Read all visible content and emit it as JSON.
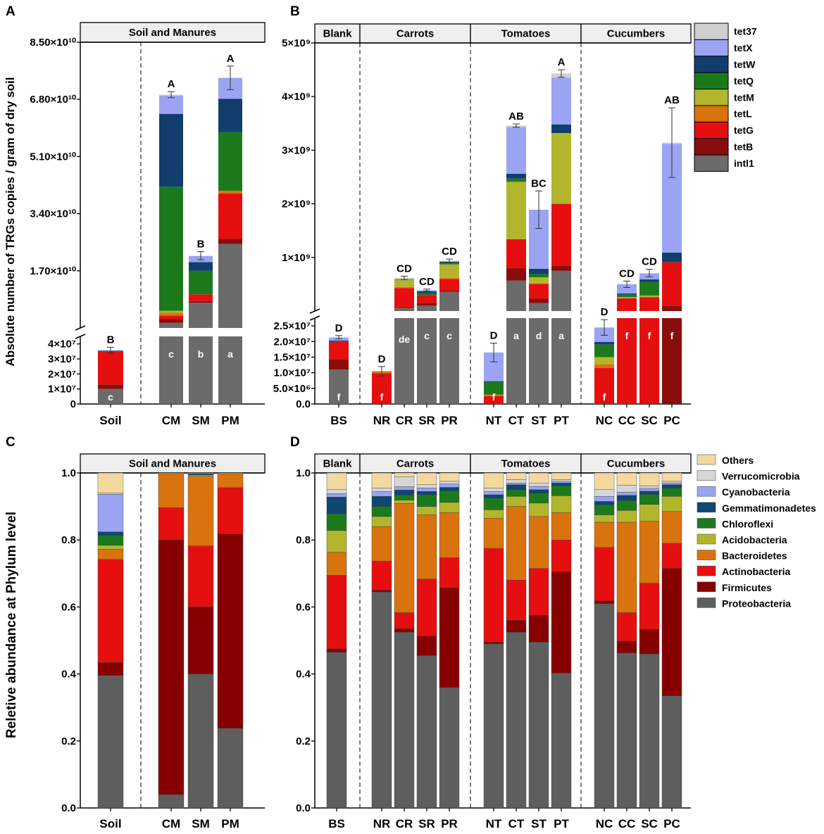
{
  "colors": {
    "tet37": "#cfcfcf",
    "tetX": "#9aa4f2",
    "tetW": "#123e6e",
    "tetQ": "#1c7a1c",
    "tetM": "#b3b52c",
    "tetL": "#d9730d",
    "tetG": "#e50f0f",
    "tetB": "#8a0d0d",
    "intI1": "#6b6b6b",
    "Others": "#f3d9a0",
    "Verrucomicrobia": "#d6d6d6",
    "Cyanobacteria": "#9aa4f2",
    "Gemmatimonadetes": "#0f4672",
    "Chloroflexi": "#1c7a1c",
    "Acidobacteria": "#b3b52c",
    "Bacteroidetes": "#d9730d",
    "Actinobacteria": "#e50f0f",
    "Firmicutes": "#870000",
    "Proteobacteria": "#5e5e5e"
  },
  "panel_labels": {
    "a": "A",
    "b": "B",
    "c": "C",
    "d": "D"
  },
  "shared_ylabels": {
    "top": "Absolute number of TRGs copies / gram of dry soil",
    "bottom": "Reletive abundance at Phylum level"
  },
  "chart_data": [
    {
      "id": "A",
      "type": "bar",
      "stacked": true,
      "broken_axis": true,
      "group_titles": [
        "Soil and Manures"
      ],
      "categories": [
        "Soil",
        "CM",
        "SM",
        "PM"
      ],
      "lower_axis": {
        "range": [
          0,
          45000000
        ],
        "ticks": [
          0,
          10000000,
          20000000,
          30000000,
          40000000
        ],
        "tick_labels": [
          "0",
          "1×10⁷",
          "2×10⁷",
          "3×10⁷",
          "4×10⁷"
        ]
      },
      "upper_axis": {
        "range": [
          0,
          85000000000
        ],
        "ticks": [
          17000000000,
          34000000000,
          51000000000,
          68000000000,
          85000000000
        ],
        "tick_labels": [
          "1.70×10¹⁰",
          "3.40×10¹⁰",
          "5.10×10¹⁰",
          "6.80×10¹⁰",
          "8.50×10¹⁰"
        ]
      },
      "stack_order": [
        "intI1",
        "tetB",
        "tetG",
        "tetL",
        "tetM",
        "tetQ",
        "tetW",
        "tetX",
        "tet37"
      ],
      "bars": [
        {
          "cat": "Soil",
          "axis": "lower",
          "values": {
            "intI1": 10000000,
            "tetB": 3000000,
            "tetG": 22000000,
            "tetL": 0,
            "tetM": 0,
            "tetQ": 0,
            "tetW": 500000,
            "tetX": 300000,
            "tet37": 0
          },
          "err": 2000000,
          "letter": "B",
          "inner": "c"
        },
        {
          "cat": "CM",
          "axis": "upper",
          "values": {
            "intI1": 1500000000,
            "tetB": 1200000000,
            "tetG": 1000000000,
            "tetL": 800000000,
            "tetM": 600000000,
            "tetQ": 36900000000,
            "tetW": 21700000000,
            "tetX": 5400000000,
            "tet37": 300000000
          },
          "err": 900000000,
          "letter": "A",
          "inner": "c"
        },
        {
          "cat": "SM",
          "axis": "upper",
          "values": {
            "intI1": 7500000000,
            "tetB": 500000000,
            "tetG": 2000000000,
            "tetL": 0,
            "tetM": 0,
            "tetQ": 7000000000,
            "tetW": 2600000000,
            "tetX": 1800000000,
            "tet37": 100000000
          },
          "err": 1200000000,
          "letter": "B",
          "inner": "b"
        },
        {
          "cat": "PM",
          "axis": "upper",
          "values": {
            "intI1": 25000000000,
            "tetB": 1500000000,
            "tetG": 13500000000,
            "tetL": 800000000,
            "tetM": 0,
            "tetQ": 17500000000,
            "tetW": 9900000000,
            "tetX": 6200000000,
            "tet37": 0
          },
          "err": 3500000000,
          "letter": "A",
          "inner": "a"
        }
      ]
    },
    {
      "id": "B",
      "type": "bar",
      "stacked": true,
      "broken_axis": true,
      "group_titles": [
        "Blank",
        "Carrots",
        "Tomatoes",
        "Cucumbers"
      ],
      "categories": [
        "BS",
        "NR",
        "CR",
        "SR",
        "PR",
        "NT",
        "CT",
        "ST",
        "PT",
        "NC",
        "CC",
        "SC",
        "PC"
      ],
      "lower_axis": {
        "range": [
          0,
          27500000
        ],
        "ticks": [
          0,
          5000000,
          10000000,
          15000000,
          20000000,
          25000000
        ],
        "tick_labels": [
          "0.0",
          "5.0×10⁶",
          "1.0×10⁷",
          "1.5×10⁷",
          "2.0×10⁷",
          "2.5×10⁷"
        ]
      },
      "upper_axis": {
        "range": [
          0,
          5000000000
        ],
        "ticks": [
          1000000000,
          2000000000,
          3000000000,
          4000000000,
          5000000000
        ],
        "tick_labels": [
          "1×10⁹",
          "2×10⁹",
          "3×10⁹",
          "4×10⁹",
          "5×10⁹"
        ]
      },
      "stack_order": [
        "intI1",
        "tetB",
        "tetG",
        "tetL",
        "tetM",
        "tetQ",
        "tetW",
        "tetX",
        "tet37"
      ],
      "bars": [
        {
          "cat": "BS",
          "axis": "lower",
          "values": {
            "intI1": 11000000,
            "tetB": 3200000,
            "tetG": 5800000,
            "tetL": 0,
            "tetM": 0,
            "tetQ": 0,
            "tetW": 300000,
            "tetX": 900000,
            "tet37": 200000
          },
          "err": 500000,
          "letter": "D",
          "inner": "f"
        },
        {
          "cat": "NR",
          "axis": "lower",
          "values": {
            "intI1": 0,
            "tetB": 0,
            "tetG": 9800000,
            "tetL": 700000,
            "tetM": 0,
            "tetQ": 0,
            "tetW": 0,
            "tetX": 0,
            "tet37": 0
          },
          "err": 1500000,
          "letter": "D",
          "inner": "f"
        },
        {
          "cat": "CR",
          "axis": "upper",
          "values": {
            "intI1": 50000000,
            "tetB": 10000000,
            "tetG": 370000000,
            "tetL": 20000000,
            "tetM": 130000000,
            "tetQ": 10000000,
            "tetW": 0,
            "tetX": 10000000,
            "tet37": 20000000
          },
          "err": 30000000,
          "letter": "CD",
          "inner": "de"
        },
        {
          "cat": "SR",
          "axis": "upper",
          "values": {
            "intI1": 100000000,
            "tetB": 50000000,
            "tetG": 150000000,
            "tetL": 0,
            "tetM": 0,
            "tetQ": 30000000,
            "tetW": 40000000,
            "tetX": 20000000,
            "tet37": 0
          },
          "err": 20000000,
          "letter": "CD",
          "inner": "c"
        },
        {
          "cat": "PR",
          "axis": "upper",
          "values": {
            "intI1": 360000000,
            "tetB": 20000000,
            "tetG": 220000000,
            "tetL": 20000000,
            "tetM": 250000000,
            "tetQ": 30000000,
            "tetW": 20000000,
            "tetX": 10000000,
            "tet37": 10000000
          },
          "err": 30000000,
          "letter": "CD",
          "inner": "c"
        },
        {
          "cat": "NT",
          "axis": "lower",
          "values": {
            "intI1": 0,
            "tetB": 0,
            "tetG": 2500000,
            "tetL": 500000,
            "tetM": 0,
            "tetQ": 4000000,
            "tetW": 300000,
            "tetX": 9200000,
            "tet37": 0
          },
          "err": 3000000,
          "letter": "D",
          "inner": "f"
        },
        {
          "cat": "CT",
          "axis": "upper",
          "values": {
            "intI1": 570000000,
            "tetB": 230000000,
            "tetG": 540000000,
            "tetL": 0,
            "tetM": 1070000000,
            "tetQ": 60000000,
            "tetW": 90000000,
            "tetX": 870000000,
            "tet37": 30000000
          },
          "err": 30000000,
          "letter": "AB",
          "inner": "a"
        },
        {
          "cat": "ST",
          "axis": "upper",
          "values": {
            "intI1": 150000000,
            "tetB": 80000000,
            "tetG": 280000000,
            "tetL": 0,
            "tetM": 120000000,
            "tetQ": 60000000,
            "tetW": 100000000,
            "tetX": 1100000000,
            "tet37": 0
          },
          "err": 350000000,
          "letter": "BC",
          "inner": "d"
        },
        {
          "cat": "PT",
          "axis": "upper",
          "values": {
            "intI1": 750000000,
            "tetB": 100000000,
            "tetG": 1150000000,
            "tetL": 0,
            "tetM": 1320000000,
            "tetQ": 0,
            "tetW": 160000000,
            "tetX": 870000000,
            "tet37": 80000000
          },
          "err": 70000000,
          "letter": "A",
          "inner": "a"
        },
        {
          "cat": "NC",
          "axis": "lower",
          "values": {
            "intI1": 0,
            "tetB": 0,
            "tetG": 11500000,
            "tetL": 1300000,
            "tetM": 2200000,
            "tetQ": 4000000,
            "tetW": 900000,
            "tetX": 4600000,
            "tet37": 0
          },
          "err": 2500000,
          "letter": "D",
          "inner": "f"
        },
        {
          "cat": "CC",
          "axis": "upper",
          "values": {
            "intI1": 0,
            "tetB": 0,
            "tetG": 240000000,
            "tetL": 0,
            "tetM": 20000000,
            "tetQ": 50000000,
            "tetW": 20000000,
            "tetX": 170000000,
            "tet37": 0
          },
          "err": 60000000,
          "letter": "CD",
          "inner": "f"
        },
        {
          "cat": "SC",
          "axis": "upper",
          "values": {
            "intI1": 0,
            "tetB": 0,
            "tetG": 260000000,
            "tetL": 0,
            "tetM": 30000000,
            "tetQ": 250000000,
            "tetW": 50000000,
            "tetX": 110000000,
            "tet37": 10000000
          },
          "err": 70000000,
          "letter": "CD",
          "inner": "f"
        },
        {
          "cat": "PC",
          "axis": "upper",
          "values": {
            "intI1": 0,
            "tetB": 100000000,
            "tetG": 810000000,
            "tetL": 0,
            "tetM": 0,
            "tetQ": 0,
            "tetW": 180000000,
            "tetX": 2030000000,
            "tet37": 20000000
          },
          "err": 650000000,
          "letter": "AB",
          "inner": "f"
        }
      ],
      "legend": [
        "tet37",
        "tetX",
        "tetW",
        "tetQ",
        "tetM",
        "tetL",
        "tetG",
        "tetB",
        "intI1"
      ],
      "legend_labels": [
        "tet37",
        "tetX",
        "tetW",
        "tetQ",
        "tetM",
        "tetL",
        "tetG",
        "tetB",
        "intl1"
      ]
    },
    {
      "id": "C",
      "type": "bar",
      "stacked": true,
      "group_titles": [
        "Soil and Manures"
      ],
      "categories": [
        "Soil",
        "CM",
        "SM",
        "PM"
      ],
      "ylim": [
        0,
        1
      ],
      "ticks": [
        0,
        0.2,
        0.4,
        0.6,
        0.8,
        1.0
      ],
      "tick_labels": [
        "0.0",
        "0.2",
        "0.4",
        "0.6",
        "0.8",
        "1.0"
      ],
      "stack_order": [
        "Proteobacteria",
        "Firmicutes",
        "Actinobacteria",
        "Bacteroidetes",
        "Acidobacteria",
        "Chloroflexi",
        "Gemmatimonadetes",
        "Cyanobacteria",
        "Verrucomicrobia",
        "Others"
      ],
      "bars": [
        {
          "cat": "Soil",
          "values": [
            0.396,
            0.038,
            0.308,
            0.03,
            0.012,
            0.03,
            0.01,
            0.112,
            0.004,
            0.06
          ]
        },
        {
          "cat": "CM",
          "values": [
            0.04,
            0.76,
            0.096,
            0.102,
            0,
            0,
            0,
            0,
            0,
            0.002
          ]
        },
        {
          "cat": "SM",
          "values": [
            0.4,
            0.2,
            0.182,
            0.208,
            0.004,
            0,
            0.004,
            0,
            0,
            0.002
          ]
        },
        {
          "cat": "PM",
          "values": [
            0.238,
            0.58,
            0.138,
            0.042,
            0,
            0,
            0,
            0,
            0,
            0.002
          ]
        }
      ]
    },
    {
      "id": "D",
      "type": "bar",
      "stacked": true,
      "group_titles": [
        "Blank",
        "Carrots",
        "Tomatoes",
        "Cucumbers"
      ],
      "categories": [
        "BS",
        "NR",
        "CR",
        "SR",
        "PR",
        "NT",
        "CT",
        "ST",
        "PT",
        "NC",
        "CC",
        "SC",
        "PC"
      ],
      "ylim": [
        0,
        1
      ],
      "ticks": [
        0,
        0.2,
        0.4,
        0.6,
        0.8,
        1.0
      ],
      "tick_labels": [
        "0.0",
        "0.2",
        "0.4",
        "0.6",
        "0.8",
        "1.0"
      ],
      "stack_order": [
        "Proteobacteria",
        "Firmicutes",
        "Actinobacteria",
        "Bacteroidetes",
        "Acidobacteria",
        "Chloroflexi",
        "Gemmatimonadetes",
        "Cyanobacteria",
        "Verrucomicrobia",
        "Others"
      ],
      "bars": [
        {
          "cat": "BS",
          "values": [
            0.465,
            0.01,
            0.22,
            0.068,
            0.065,
            0.05,
            0.05,
            0.01,
            0.012,
            0.05
          ]
        },
        {
          "cat": "NR",
          "values": [
            0.645,
            0.005,
            0.087,
            0.103,
            0.03,
            0.03,
            0.03,
            0.015,
            0.01,
            0.045
          ]
        },
        {
          "cat": "CR",
          "values": [
            0.525,
            0.01,
            0.048,
            0.326,
            0.01,
            0.015,
            0.015,
            0.01,
            0.03,
            0.011
          ]
        },
        {
          "cat": "SR",
          "values": [
            0.455,
            0.058,
            0.17,
            0.192,
            0.025,
            0.035,
            0.01,
            0.01,
            0.01,
            0.035
          ]
        },
        {
          "cat": "PR",
          "values": [
            0.36,
            0.297,
            0.09,
            0.135,
            0.03,
            0.035,
            0.01,
            0.01,
            0.008,
            0.025
          ]
        },
        {
          "cat": "NT",
          "values": [
            0.49,
            0.005,
            0.28,
            0.09,
            0.025,
            0.035,
            0.01,
            0.01,
            0.01,
            0.045
          ]
        },
        {
          "cat": "CT",
          "values": [
            0.525,
            0.035,
            0.12,
            0.22,
            0.03,
            0.02,
            0.015,
            0.005,
            0.01,
            0.02
          ]
        },
        {
          "cat": "ST",
          "values": [
            0.495,
            0.08,
            0.14,
            0.155,
            0.04,
            0.03,
            0.01,
            0.01,
            0.01,
            0.03
          ]
        },
        {
          "cat": "PT",
          "values": [
            0.403,
            0.302,
            0.095,
            0.082,
            0.05,
            0.03,
            0.008,
            0.005,
            0.005,
            0.02
          ]
        },
        {
          "cat": "NC",
          "values": [
            0.61,
            0.008,
            0.16,
            0.075,
            0.022,
            0.03,
            0.01,
            0.015,
            0.02,
            0.05
          ]
        },
        {
          "cat": "CC",
          "values": [
            0.463,
            0.035,
            0.085,
            0.27,
            0.035,
            0.03,
            0.015,
            0.01,
            0.02,
            0.037
          ]
        },
        {
          "cat": "SC",
          "values": [
            0.46,
            0.073,
            0.138,
            0.185,
            0.05,
            0.03,
            0.01,
            0.008,
            0.008,
            0.038
          ]
        },
        {
          "cat": "PC",
          "values": [
            0.335,
            0.38,
            0.075,
            0.095,
            0.045,
            0.025,
            0.01,
            0.005,
            0.005,
            0.025
          ]
        }
      ],
      "legend": [
        "Others",
        "Verrucomicrobia",
        "Cyanobacteria",
        "Gemmatimonadetes",
        "Chloroflexi",
        "Acidobacteria",
        "Bacteroidetes",
        "Actinobacteria",
        "Firmicutes",
        "Proteobacteria"
      ]
    }
  ]
}
